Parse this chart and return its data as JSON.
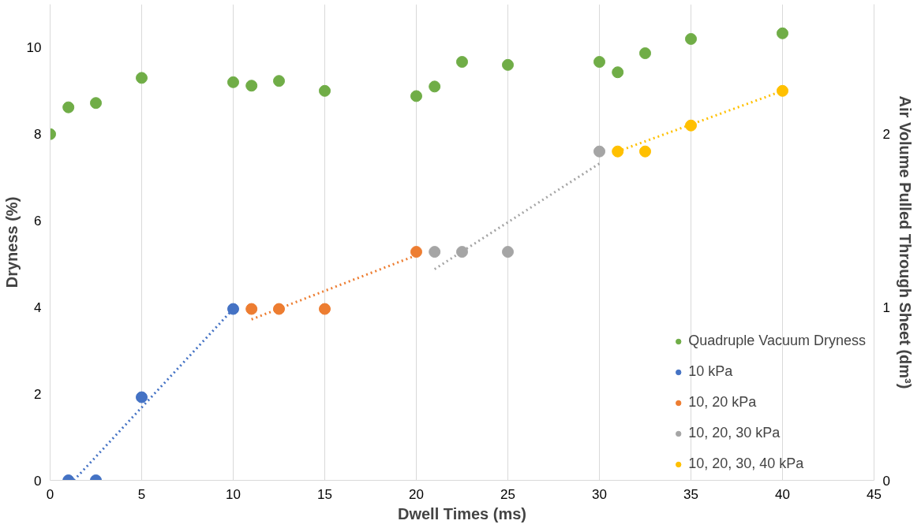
{
  "chart_data": {
    "type": "scatter",
    "xlabel": "Dwell Times (ms)",
    "ylabel": "Dryness (%)",
    "y2label": "Air Volume Pulled Through Sheet (dm³)",
    "xlim": [
      0,
      45
    ],
    "xticks": [
      0,
      5,
      10,
      15,
      20,
      25,
      30,
      35,
      40,
      45
    ],
    "ylim": [
      0,
      11
    ],
    "yticks": [
      0,
      2,
      4,
      6,
      8,
      10
    ],
    "y2lim": [
      0,
      2.75
    ],
    "y2ticks": [
      0,
      1,
      2
    ],
    "grid": "x",
    "legend": "bottom right",
    "marker": "circle",
    "series": [
      {
        "name": "Quadruple Vacuum Dryness",
        "color": "#70ad47",
        "x": [
          0,
          1,
          2.5,
          5,
          10,
          11,
          12.5,
          15,
          20,
          21,
          22.5,
          25,
          30,
          31,
          32.5,
          35,
          40
        ],
        "values": [
          8.0,
          8.62,
          8.72,
          9.3,
          9.2,
          9.12,
          9.23,
          9.0,
          8.88,
          9.1,
          9.67,
          9.6,
          9.67,
          9.43,
          9.87,
          10.2,
          10.33
        ]
      },
      {
        "name": "10 kPa",
        "color": "#4472c4",
        "axis": "y2",
        "x": [
          1,
          2.5,
          5,
          10
        ],
        "values": [
          0,
          0,
          0.48,
          0.99
        ]
      },
      {
        "name": "10, 20 kPa",
        "color": "#ed7d31",
        "axis": "y2",
        "x": [
          11,
          12.5,
          15,
          20
        ],
        "values": [
          0.99,
          0.99,
          0.99,
          1.32
        ]
      },
      {
        "name": "10, 20, 30 kPa",
        "color": "#a5a5a5",
        "axis": "y2",
        "x": [
          21,
          22.5,
          25,
          30
        ],
        "values": [
          1.32,
          1.32,
          1.32,
          1.9
        ]
      },
      {
        "name": "10, 20, 30, 40 kPa",
        "color": "#ffc000",
        "axis": "y2",
        "x": [
          31,
          32.5,
          35,
          40
        ],
        "values": [
          1.9,
          1.9,
          2.05,
          2.25
        ]
      },
      {
        "type": "line",
        "line_style": "dotted",
        "marker": "none",
        "color": "#4472c4",
        "axis": "y2",
        "x": [
          1.3,
          10
        ],
        "values": [
          0,
          0.99
        ]
      },
      {
        "type": "line",
        "line_style": "dotted",
        "marker": "none",
        "color": "#ed7d31",
        "axis": "y2",
        "x": [
          11,
          20
        ],
        "values": [
          0.93,
          1.3
        ]
      },
      {
        "type": "line",
        "line_style": "dotted",
        "marker": "none",
        "color": "#a5a5a5",
        "axis": "y2",
        "x": [
          21,
          30
        ],
        "values": [
          1.22,
          1.83
        ]
      },
      {
        "type": "line",
        "line_style": "dotted",
        "marker": "none",
        "color": "#ffc000",
        "axis": "y2",
        "x": [
          31,
          40
        ],
        "values": [
          1.9,
          2.25
        ]
      }
    ]
  }
}
